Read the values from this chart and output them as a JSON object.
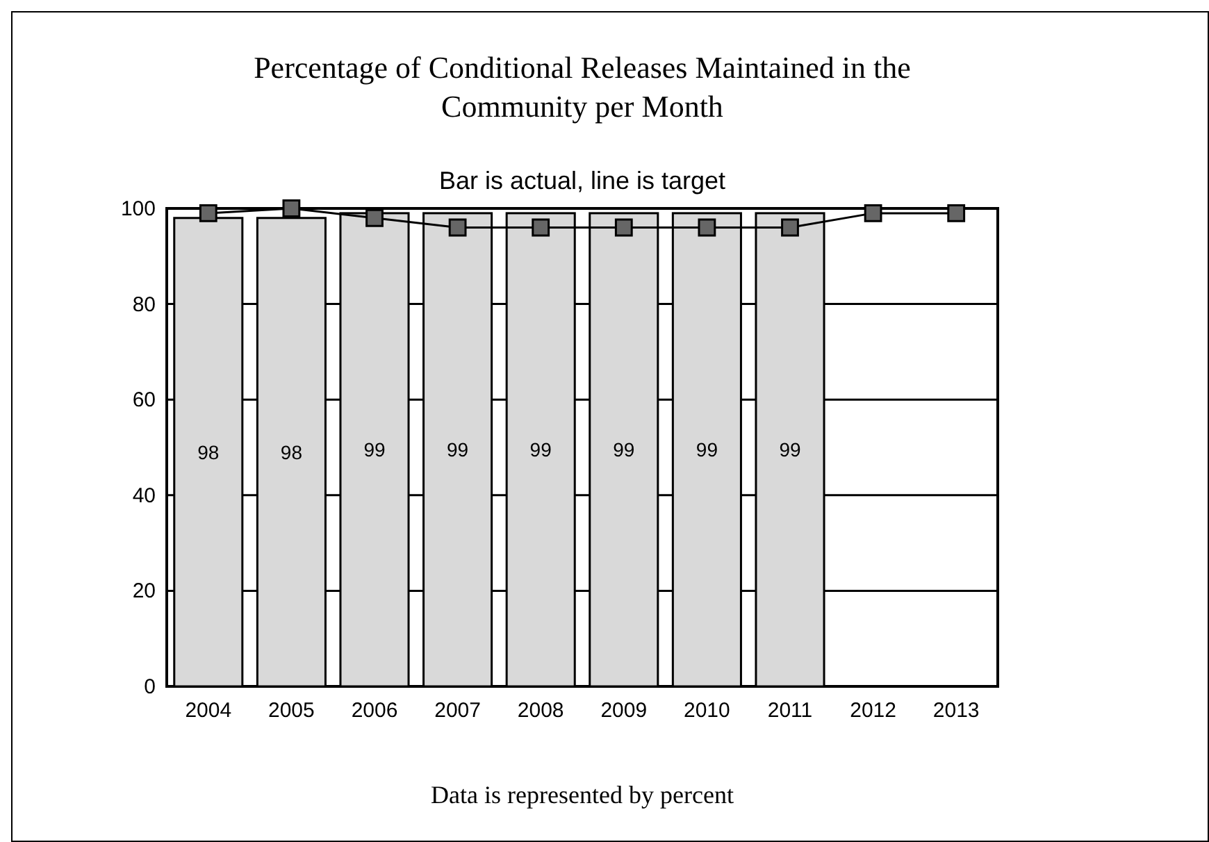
{
  "chart_data": {
    "type": "bar",
    "title": "Percentage of Conditional Releases Maintained in the Community per Month",
    "subtitle": "Bar is actual, line is target",
    "annotations": [
      "Data is represented by percent"
    ],
    "categories": [
      "2004",
      "2005",
      "2006",
      "2007",
      "2008",
      "2009",
      "2010",
      "2011",
      "2012",
      "2013"
    ],
    "series": [
      {
        "color": "#d9d9d9",
        "values": [
          98,
          98,
          99,
          99,
          99,
          99,
          99,
          99,
          null,
          null
        ],
        "value_labels": [
          "98",
          "98",
          "99",
          "99",
          "99",
          "99",
          "99",
          "99",
          null,
          null
        ]
      },
      {
        "type": "line",
        "color": "#000000",
        "marker": "square",
        "values": [
          99,
          100,
          98,
          96,
          96,
          96,
          96,
          96,
          99,
          99
        ]
      }
    ],
    "ylim": [
      0,
      100
    ],
    "yticks": [
      0,
      20,
      40,
      60,
      80,
      100
    ],
    "grid": "y"
  }
}
